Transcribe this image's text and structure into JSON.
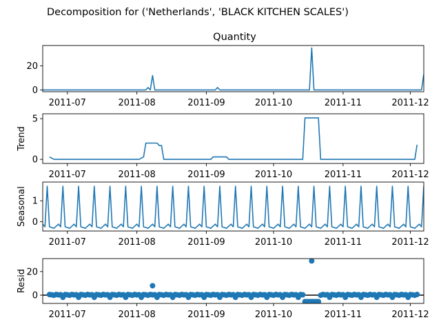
{
  "figure_title": "Decomposition for ('Netherlands', 'BLACK KITCHEN SCALES')",
  "colors": {
    "series": "#1f77b4",
    "axis": "#000000",
    "zero_line": "#000000"
  },
  "x_axis": {
    "range": [
      "2011-06-20",
      "2011-12-07"
    ],
    "ticks": [
      {
        "date": "2011-07-01",
        "label": "2011-07"
      },
      {
        "date": "2011-08-01",
        "label": "2011-08"
      },
      {
        "date": "2011-09-01",
        "label": "2011-09"
      },
      {
        "date": "2011-10-01",
        "label": "2011-10"
      },
      {
        "date": "2011-11-01",
        "label": "2011-11"
      },
      {
        "date": "2011-12-01",
        "label": "2011-12"
      }
    ]
  },
  "chart_data": [
    {
      "type": "line",
      "title": "Quantity",
      "ylabel": "",
      "ylim": [
        -1.5,
        37
      ],
      "yticks": [
        0,
        20
      ],
      "series": [
        {
          "x": [
            "2011-06-20",
            "2011-08-05",
            "2011-08-06",
            "2011-08-07",
            "2011-08-08",
            "2011-08-09",
            "2011-09-05",
            "2011-09-06",
            "2011-09-07",
            "2011-10-17",
            "2011-10-18",
            "2011-10-19",
            "2011-12-06",
            "2011-12-07"
          ],
          "values": [
            0,
            0,
            2,
            0,
            12,
            0,
            0,
            2,
            0,
            0,
            35,
            0,
            0,
            13
          ]
        }
      ]
    },
    {
      "type": "line",
      "title": "",
      "ylabel": "Trend",
      "ylim": [
        -0.5,
        5.6
      ],
      "yticks": [
        0,
        5
      ],
      "series": [
        {
          "x": [
            "2011-06-23",
            "2011-06-25",
            "2011-08-02",
            "2011-08-04",
            "2011-08-05",
            "2011-08-10",
            "2011-08-11",
            "2011-08-12",
            "2011-08-13",
            "2011-09-03",
            "2011-09-04",
            "2011-09-10",
            "2011-09-11",
            "2011-10-14",
            "2011-10-15",
            "2011-10-21",
            "2011-10-22",
            "2011-12-03",
            "2011-12-04"
          ],
          "values": [
            0.3,
            0,
            0,
            0.3,
            2,
            2,
            1.7,
            1.7,
            0,
            0,
            0.3,
            0.3,
            0,
            0,
            5.1,
            5.1,
            0,
            0,
            1.8
          ]
        }
      ]
    },
    {
      "type": "line",
      "title": "",
      "ylabel": "Seasonal",
      "ylim": [
        -0.45,
        1.9
      ],
      "yticks": [
        0,
        1
      ],
      "series": [
        {
          "pattern": [
            1.7,
            -0.25,
            -0.28,
            -0.32,
            -0.22,
            -0.12,
            -0.25
          ],
          "pattern_start": "2011-06-22",
          "range": [
            "2011-06-20",
            "2011-12-07"
          ]
        }
      ]
    },
    {
      "type": "scatter",
      "title": "",
      "ylabel": "Resid",
      "ylim": [
        -7,
        31
      ],
      "yticks": [
        0,
        20
      ],
      "zero_line": true,
      "outliers": [
        {
          "x": "2011-08-08",
          "y": 8
        },
        {
          "x": "2011-10-18",
          "y": 29
        }
      ],
      "series": [
        {
          "pattern": [
            -1.8,
            0.5,
            0.3,
            -0.1,
            0.6,
            0.2,
            0.4
          ],
          "pattern_start": "2011-06-22",
          "range": [
            "2011-06-23",
            "2011-12-04"
          ],
          "overrides": [
            {
              "from": "2011-10-15",
              "to": "2011-10-21",
              "y": -5.5
            }
          ]
        }
      ]
    }
  ]
}
